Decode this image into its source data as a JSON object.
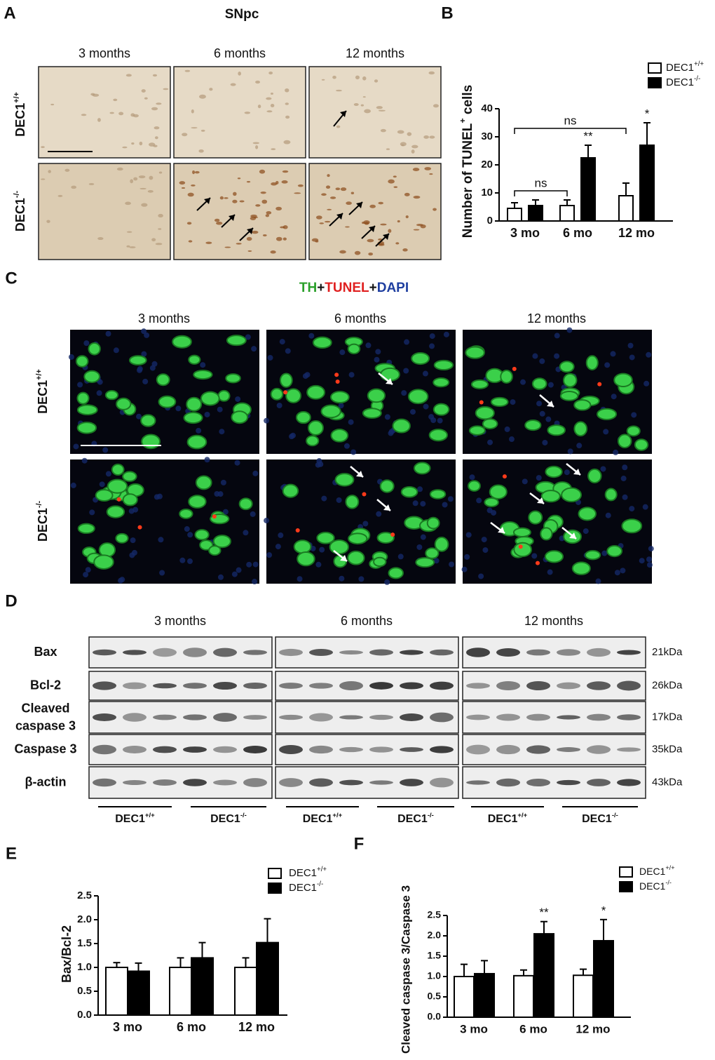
{
  "panel_labels": [
    "A",
    "B",
    "C",
    "D",
    "E",
    "F"
  ],
  "panel_a": {
    "title": "SNpc",
    "columns": [
      "3 months",
      "6 months",
      "12 months"
    ],
    "rows": [
      {
        "text": "DEC1",
        "sup": "+/+"
      },
      {
        "text": "DEC1",
        "sup": "-/-"
      }
    ]
  },
  "panel_c": {
    "title_parts": [
      "TH",
      "+",
      "TUNEL",
      "+",
      "DAPI"
    ],
    "title_colors": [
      "#2aa02a",
      "#111111",
      "#e02020",
      "#111111",
      "#1f3fa0"
    ],
    "columns": [
      "3 months",
      "6 months",
      "12 months"
    ],
    "rows": [
      {
        "text": "DEC1",
        "sup": "+/+"
      },
      {
        "text": "DEC1",
        "sup": "-/-"
      }
    ]
  },
  "panel_d": {
    "columns": [
      "3 months",
      "6 months",
      "12 months"
    ],
    "rows": [
      "Bax",
      "Bcl-2",
      [
        "Cleaved",
        "caspase 3"
      ],
      "Caspase 3",
      "β-actin"
    ],
    "sizes": [
      "21kDa",
      "26kDa",
      "17kDa",
      "35kDa",
      "43kDa"
    ],
    "groups": [
      {
        "text": "DEC1",
        "sup": "+/+"
      },
      {
        "text": "DEC1",
        "sup": "-/-"
      },
      {
        "text": "DEC1",
        "sup": "+/+"
      },
      {
        "text": "DEC1",
        "sup": "-/-"
      },
      {
        "text": "DEC1",
        "sup": "+/+"
      },
      {
        "text": "DEC1",
        "sup": "-/-"
      }
    ]
  },
  "chart_data": [
    {
      "type": "bar",
      "ylabel": [
        {
          "text": "Number of TUNEL"
        },
        {
          "text": "+",
          "sup": true
        },
        {
          "text": " cells"
        }
      ],
      "categories": [
        "3 mo",
        "6 mo",
        "12 mo"
      ],
      "series": [
        {
          "name": "DEC1",
          "name_sup": "+/+",
          "color": "#ffffff",
          "values": [
            4.5,
            5.5,
            9
          ],
          "errors": [
            2,
            2,
            4.5
          ]
        },
        {
          "name": "DEC1",
          "name_sup": "-/-",
          "color": "#000000",
          "values": [
            5.5,
            22.5,
            27
          ],
          "errors": [
            2,
            4.5,
            8
          ]
        }
      ],
      "ylim": [
        0,
        40
      ],
      "yticks": [
        0,
        10,
        20,
        30,
        40
      ],
      "annotations": [
        {
          "text": "ns"
        },
        {
          "text": "ns"
        },
        {
          "text": "**"
        },
        {
          "text": "*"
        }
      ]
    },
    {
      "type": "bar",
      "ylabel": "Bax/Bcl-2",
      "categories": [
        "3 mo",
        "6 mo",
        "12 mo"
      ],
      "series": [
        {
          "name": "DEC1",
          "name_sup": "+/+",
          "color": "#ffffff",
          "values": [
            1,
            1,
            1
          ],
          "errors": [
            0.1,
            0.2,
            0.2
          ]
        },
        {
          "name": "DEC1",
          "name_sup": "-/-",
          "color": "#000000",
          "values": [
            0.92,
            1.2,
            1.52
          ],
          "errors": [
            0.17,
            0.32,
            0.5
          ]
        }
      ],
      "ylim": [
        0,
        2.5
      ],
      "yticks": [
        {
          "value": 0,
          "label": "0.0"
        },
        0.5,
        {
          "value": 1,
          "label": "1.0"
        },
        1.5,
        {
          "value": 2,
          "label": "2.0"
        },
        2.5
      ],
      "annotations": []
    },
    {
      "type": "bar",
      "ylabel": "Cleaved caspase 3/Caspase 3",
      "categories": [
        "3 mo",
        "6 mo",
        "12 mo"
      ],
      "series": [
        {
          "name": "DEC1",
          "name_sup": "+/+",
          "color": "#ffffff",
          "values": [
            1,
            1.02,
            1.03
          ],
          "errors": [
            0.3,
            0.14,
            0.15
          ]
        },
        {
          "name": "DEC1",
          "name_sup": "-/-",
          "color": "#000000",
          "values": [
            1.07,
            2.05,
            1.88
          ],
          "errors": [
            0.32,
            0.3,
            0.52
          ]
        }
      ],
      "ylim": [
        0,
        2.5
      ],
      "yticks": [
        {
          "value": 0,
          "label": "0.0"
        },
        0.5,
        {
          "value": 1,
          "label": "1.0"
        },
        1.5,
        {
          "value": 2,
          "label": "2.0"
        },
        2.5
      ],
      "annotations": [
        {
          "text": "**"
        },
        {
          "text": "*"
        }
      ]
    }
  ]
}
